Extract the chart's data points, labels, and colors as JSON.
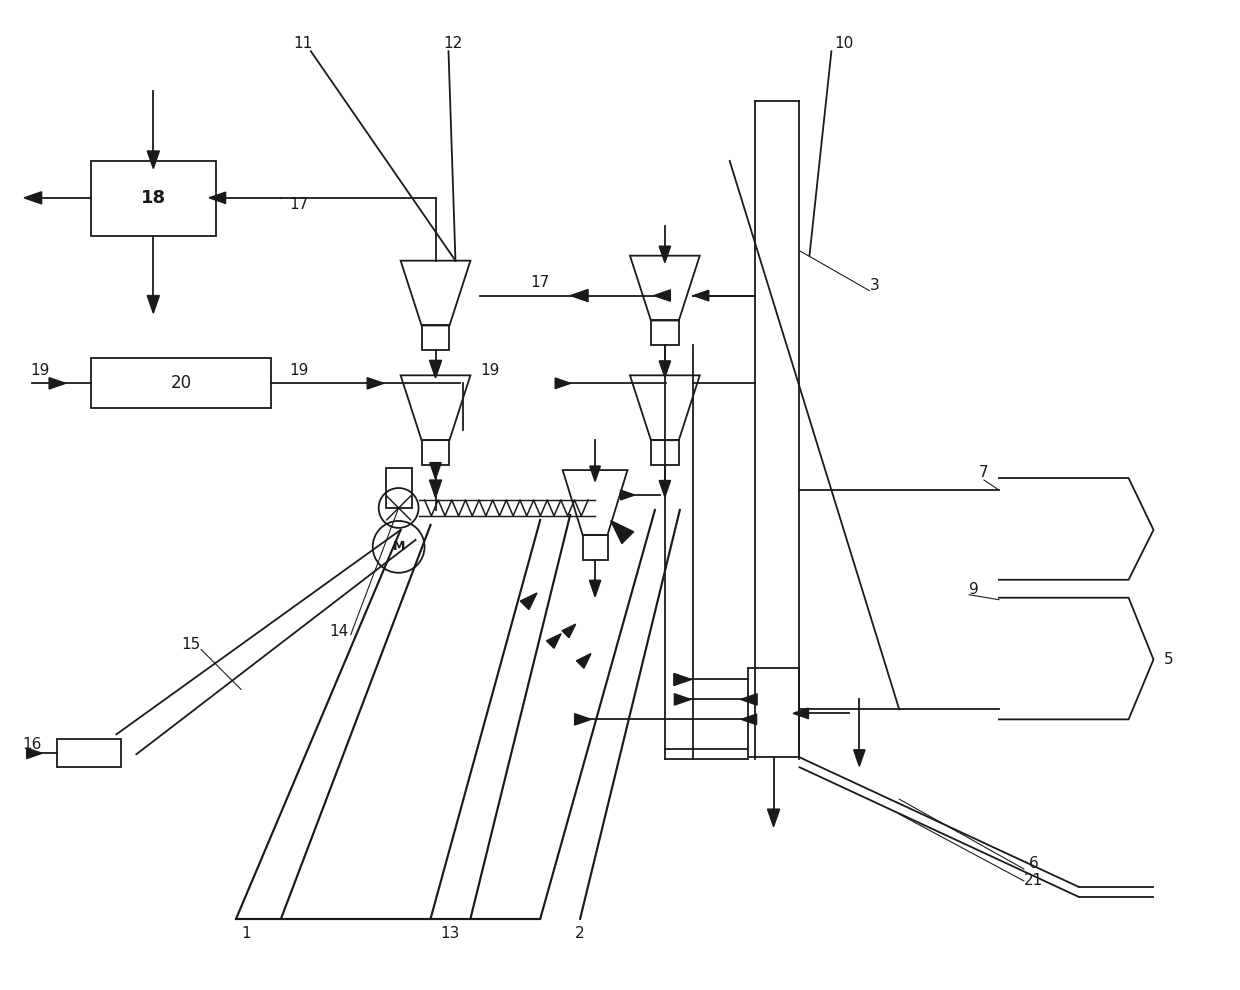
{
  "bg_color": "#ffffff",
  "lc": "#1a1a1a",
  "lw": 1.3,
  "figw": 12.4,
  "figh": 9.9,
  "dpi": 100
}
